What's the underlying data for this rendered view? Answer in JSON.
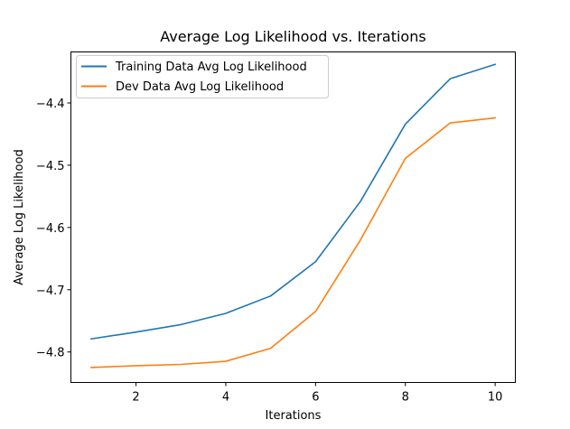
{
  "chart_data": {
    "type": "line",
    "title": "Average Log Likelihood vs. Iterations",
    "xlabel": "Iterations",
    "ylabel": "Average Log Likelihood",
    "x": [
      1,
      2,
      3,
      4,
      5,
      6,
      7,
      8,
      9,
      10
    ],
    "xlim": [
      0.55,
      10.45
    ],
    "ylim": [
      -4.849,
      -4.318
    ],
    "xticks": [
      2,
      4,
      6,
      8,
      10
    ],
    "yticks": [
      -4.8,
      -4.7,
      -4.6,
      -4.5,
      -4.4
    ],
    "xtick_labels": [
      "2",
      "4",
      "6",
      "8",
      "10"
    ],
    "ytick_labels": [
      "−4.8",
      "−4.7",
      "−4.6",
      "−4.5",
      "−4.4"
    ],
    "grid": false,
    "legend_position": "upper-left",
    "series": [
      {
        "name": "Training Data Avg Log Likelihood",
        "color": "#1f77b4",
        "values": [
          -4.779,
          -4.768,
          -4.756,
          -4.738,
          -4.71,
          -4.655,
          -4.558,
          -4.434,
          -4.361,
          -4.338
        ]
      },
      {
        "name": "Dev Data Avg Log Likelihood",
        "color": "#ff7f0e",
        "values": [
          -4.825,
          -4.822,
          -4.82,
          -4.815,
          -4.794,
          -4.735,
          -4.62,
          -4.489,
          -4.432,
          -4.424
        ]
      }
    ]
  }
}
